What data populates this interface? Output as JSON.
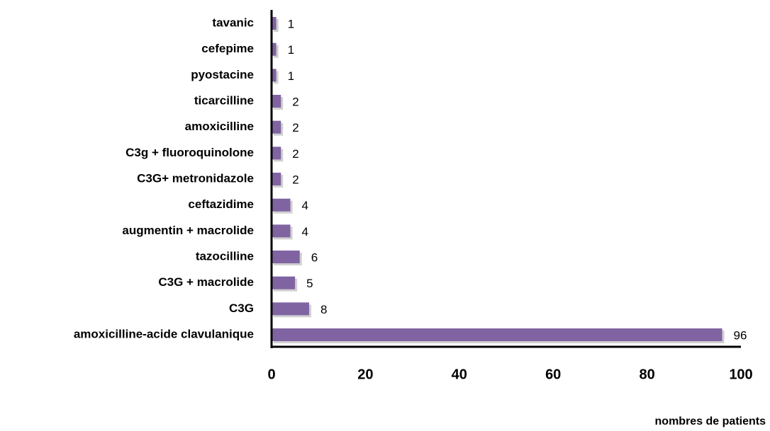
{
  "chart_data": {
    "type": "bar",
    "orientation": "horizontal",
    "categories": [
      "tavanic",
      "cefepime",
      "pyostacine",
      "ticarcilline",
      "amoxicilline",
      "C3g + fluoroquinolone",
      "C3G+ metronidazole",
      "ceftazidime",
      "augmentin + macrolide",
      "tazocilline",
      "C3G + macrolide",
      "C3G",
      "amoxicilline-acide clavulanique"
    ],
    "values": [
      1,
      1,
      1,
      2,
      2,
      2,
      2,
      4,
      4,
      6,
      5,
      8,
      96
    ],
    "color": "#8064a2",
    "xlim": [
      0,
      100
    ],
    "xticks": [
      0,
      20,
      40,
      60,
      80,
      100
    ],
    "xlabel": "nombres de patients",
    "grid": false
  }
}
